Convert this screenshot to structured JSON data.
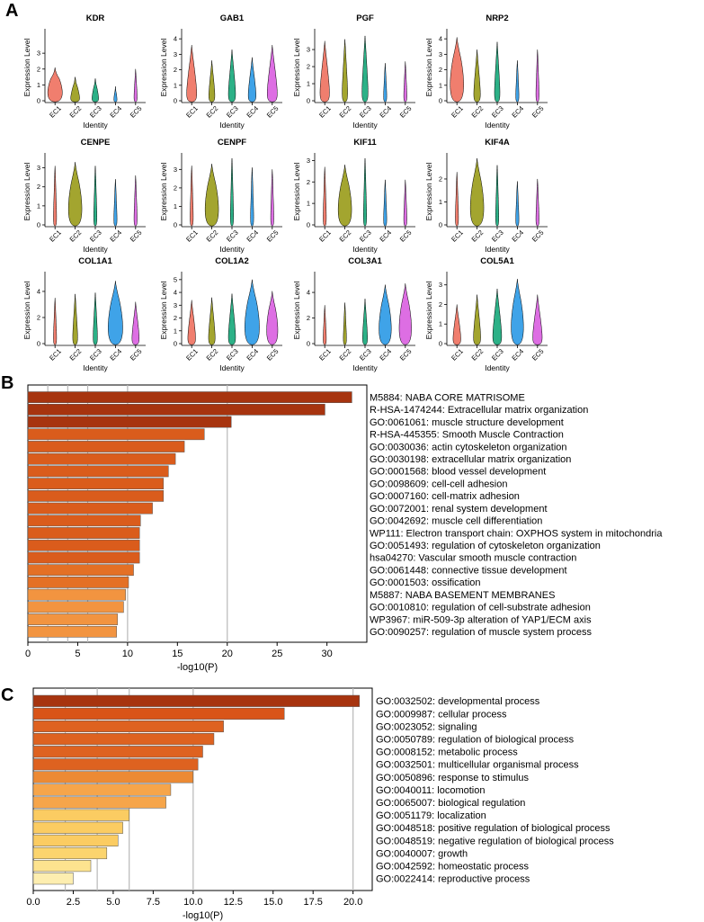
{
  "panels": {
    "a": "A",
    "b": "B",
    "c": "C"
  },
  "chart_data": [
    {
      "type": "violin",
      "panel": "A",
      "ylabel": "Expression Level",
      "xlabel": "Identity",
      "categories": [
        "EC1",
        "EC2",
        "EC3",
        "EC4",
        "EC5"
      ],
      "colors": [
        "#f07e6e",
        "#a3a52f",
        "#2cb187",
        "#3fa3e8",
        "#dd6ee3"
      ],
      "genes": [
        {
          "name": "KDR",
          "ymax": 4.2,
          "ticks": [
            0,
            1,
            2,
            3
          ],
          "heights": [
            2.1,
            1.5,
            1.4,
            0.9,
            2.0
          ],
          "bulge": [
            1.0,
            0.5,
            0.3,
            0.0,
            0.0
          ]
        },
        {
          "name": "GAB1",
          "ymax": 4.3,
          "ticks": [
            0,
            1,
            2,
            3,
            4
          ],
          "heights": [
            3.6,
            2.6,
            3.3,
            2.8,
            3.6
          ],
          "bulge": [
            0.6,
            0.25,
            0.35,
            0.4,
            0.6
          ]
        },
        {
          "name": "PGF",
          "ymax": 3.9,
          "ticks": [
            0,
            1,
            2,
            3
          ],
          "heights": [
            3.5,
            3.6,
            3.8,
            2.2,
            2.3
          ],
          "bulge": [
            0.55,
            0.2,
            0.25,
            0.0,
            0.0
          ]
        },
        {
          "name": "NRP2",
          "ymax": 4.3,
          "ticks": [
            0,
            1,
            2,
            3,
            4
          ],
          "heights": [
            4.1,
            3.3,
            3.8,
            2.6,
            3.3
          ],
          "bulge": [
            0.9,
            0.3,
            0.2,
            0.0,
            0.0
          ]
        },
        {
          "name": "CENPE",
          "ymax": 3.5,
          "ticks": [
            0,
            1,
            2,
            3
          ],
          "heights": [
            3.1,
            3.3,
            3.1,
            2.4,
            2.6
          ],
          "bulge": [
            0.0,
            0.9,
            0.0,
            0.0,
            0.0
          ]
        },
        {
          "name": "CENPF",
          "ymax": 3.6,
          "ticks": [
            0,
            1,
            2,
            3
          ],
          "heights": [
            3.2,
            3.3,
            3.6,
            3.1,
            3.0
          ],
          "bulge": [
            0.0,
            0.9,
            0.0,
            0.0,
            0.0
          ]
        },
        {
          "name": "KIF11",
          "ymax": 3.1,
          "ticks": [
            0,
            1,
            2,
            3
          ],
          "heights": [
            2.7,
            2.8,
            3.1,
            2.1,
            2.1
          ],
          "bulge": [
            0.0,
            0.9,
            0.0,
            0.0,
            0.0
          ]
        },
        {
          "name": "KIF4A",
          "ymax": 2.9,
          "ticks": [
            0,
            1,
            2
          ],
          "heights": [
            2.3,
            2.9,
            2.6,
            1.9,
            2.0
          ],
          "bulge": [
            0.0,
            0.9,
            0.0,
            0.0,
            0.0
          ]
        },
        {
          "name": "COL1A1",
          "ymax": 5.1,
          "ticks": [
            0,
            2,
            4
          ],
          "heights": [
            3.5,
            3.8,
            3.9,
            4.8,
            3.2
          ],
          "bulge": [
            0.0,
            0.15,
            0.1,
            1.0,
            0.35
          ]
        },
        {
          "name": "COL1A2",
          "ymax": 5.2,
          "ticks": [
            0,
            1,
            2,
            3,
            4,
            5
          ],
          "heights": [
            3.4,
            3.6,
            3.9,
            5.0,
            4.1
          ],
          "bulge": [
            0.4,
            0.3,
            0.35,
            1.0,
            0.7
          ]
        },
        {
          "name": "COL3A1",
          "ymax": 5.2,
          "ticks": [
            0,
            2,
            4
          ],
          "heights": [
            3.0,
            3.2,
            3.5,
            4.6,
            4.7
          ],
          "bulge": [
            0.0,
            0.0,
            0.15,
            0.8,
            0.8
          ]
        },
        {
          "name": "COL5A1",
          "ymax": 3.4,
          "ticks": [
            0,
            1,
            2,
            3
          ],
          "heights": [
            2.0,
            2.5,
            2.8,
            3.3,
            2.5
          ],
          "bulge": [
            0.4,
            0.35,
            0.5,
            0.8,
            0.55
          ]
        }
      ]
    },
    {
      "type": "bar",
      "orientation": "horizontal",
      "panel": "B",
      "xlabel": "-log10(P)",
      "xlim": [
        0,
        34
      ],
      "xticks": [
        0,
        5,
        10,
        15,
        20,
        25,
        30
      ],
      "guides": [
        2,
        4,
        6,
        10,
        20
      ],
      "categories": [
        "M5884: NABA CORE MATRISOME",
        "R-HSA-1474244: Extracellular matrix organization",
        "GO:0061061: muscle structure development",
        "R-HSA-445355: Smooth Muscle Contraction",
        "GO:0030036: actin cytoskeleton organization",
        "GO:0030198: extracellular matrix organization",
        "GO:0001568: blood vessel development",
        "GO:0098609: cell-cell adhesion",
        "GO:0007160: cell-matrix adhesion",
        "GO:0072001: renal system development",
        "GO:0042692: muscle cell differentiation",
        "WP111: Electron transport chain: OXPHOS system in mitochondria",
        "GO:0051493: regulation of cytoskeleton organization",
        "hsa04270: Vascular smooth muscle contraction",
        "GO:0061448: connective tissue development",
        "GO:0001503: ossification",
        "M5887: NABA BASEMENT MEMBRANES",
        "GO:0010810: regulation of cell-substrate adhesion",
        "WP3967: miR-509-3p alteration of YAP1/ECM axis",
        "GO:0090257: regulation of muscle system process"
      ],
      "values": [
        32.5,
        29.8,
        20.4,
        17.7,
        15.7,
        14.8,
        14.1,
        13.6,
        13.6,
        12.5,
        11.3,
        11.2,
        11.2,
        11.2,
        10.6,
        10.1,
        9.8,
        9.6,
        9.0,
        8.9
      ],
      "colors": [
        "#a7340f",
        "#a7340f",
        "#a7340f",
        "#da5c1c",
        "#da5c1c",
        "#da5c1c",
        "#da5c1c",
        "#da5c1c",
        "#da5c1c",
        "#da5c1c",
        "#da5c1c",
        "#da5c1c",
        "#da5c1c",
        "#da5c1c",
        "#e47025",
        "#e47025",
        "#f29440",
        "#f29440",
        "#f29440",
        "#f29440"
      ]
    },
    {
      "type": "bar",
      "orientation": "horizontal",
      "panel": "C",
      "xlabel": "-log10(P)",
      "xlim": [
        0,
        21.2
      ],
      "xticks": [
        0.0,
        2.5,
        5.0,
        7.5,
        10.0,
        12.5,
        15.0,
        17.5,
        20.0
      ],
      "tick_labels": [
        "0.0",
        "2.5",
        "5.0",
        "7.5",
        "10.0",
        "12.5",
        "15.0",
        "17.5",
        "20.0"
      ],
      "guides": [
        2,
        4,
        6,
        10,
        20
      ],
      "categories": [
        "GO:0032502: developmental process",
        "GO:0009987: cellular process",
        "GO:0023052: signaling",
        "GO:0050789: regulation of biological process",
        "GO:0008152: metabolic process",
        "GO:0032501: multicellular organismal process",
        "GO:0050896: response to stimulus",
        "GO:0040011: locomotion",
        "GO:0065007: biological regulation",
        "GO:0051179: localization",
        "GO:0048518: positive regulation of biological process",
        "GO:0048519: negative regulation of biological process",
        "GO:0040007: growth",
        "GO:0042592: homeostatic process",
        "GO:0022414: reproductive process"
      ],
      "values": [
        20.4,
        15.7,
        11.9,
        11.3,
        10.6,
        10.3,
        10.0,
        8.6,
        8.3,
        6.0,
        5.6,
        5.3,
        4.6,
        3.6,
        2.5
      ],
      "colors": [
        "#a7340f",
        "#d95418",
        "#de6220",
        "#de6220",
        "#de6220",
        "#de6220",
        "#ec8a34",
        "#f6a54a",
        "#f6a54a",
        "#fbcc62",
        "#fbcc62",
        "#fbcc62",
        "#fbd46e",
        "#fde38f",
        "#fdeeb0"
      ]
    }
  ]
}
